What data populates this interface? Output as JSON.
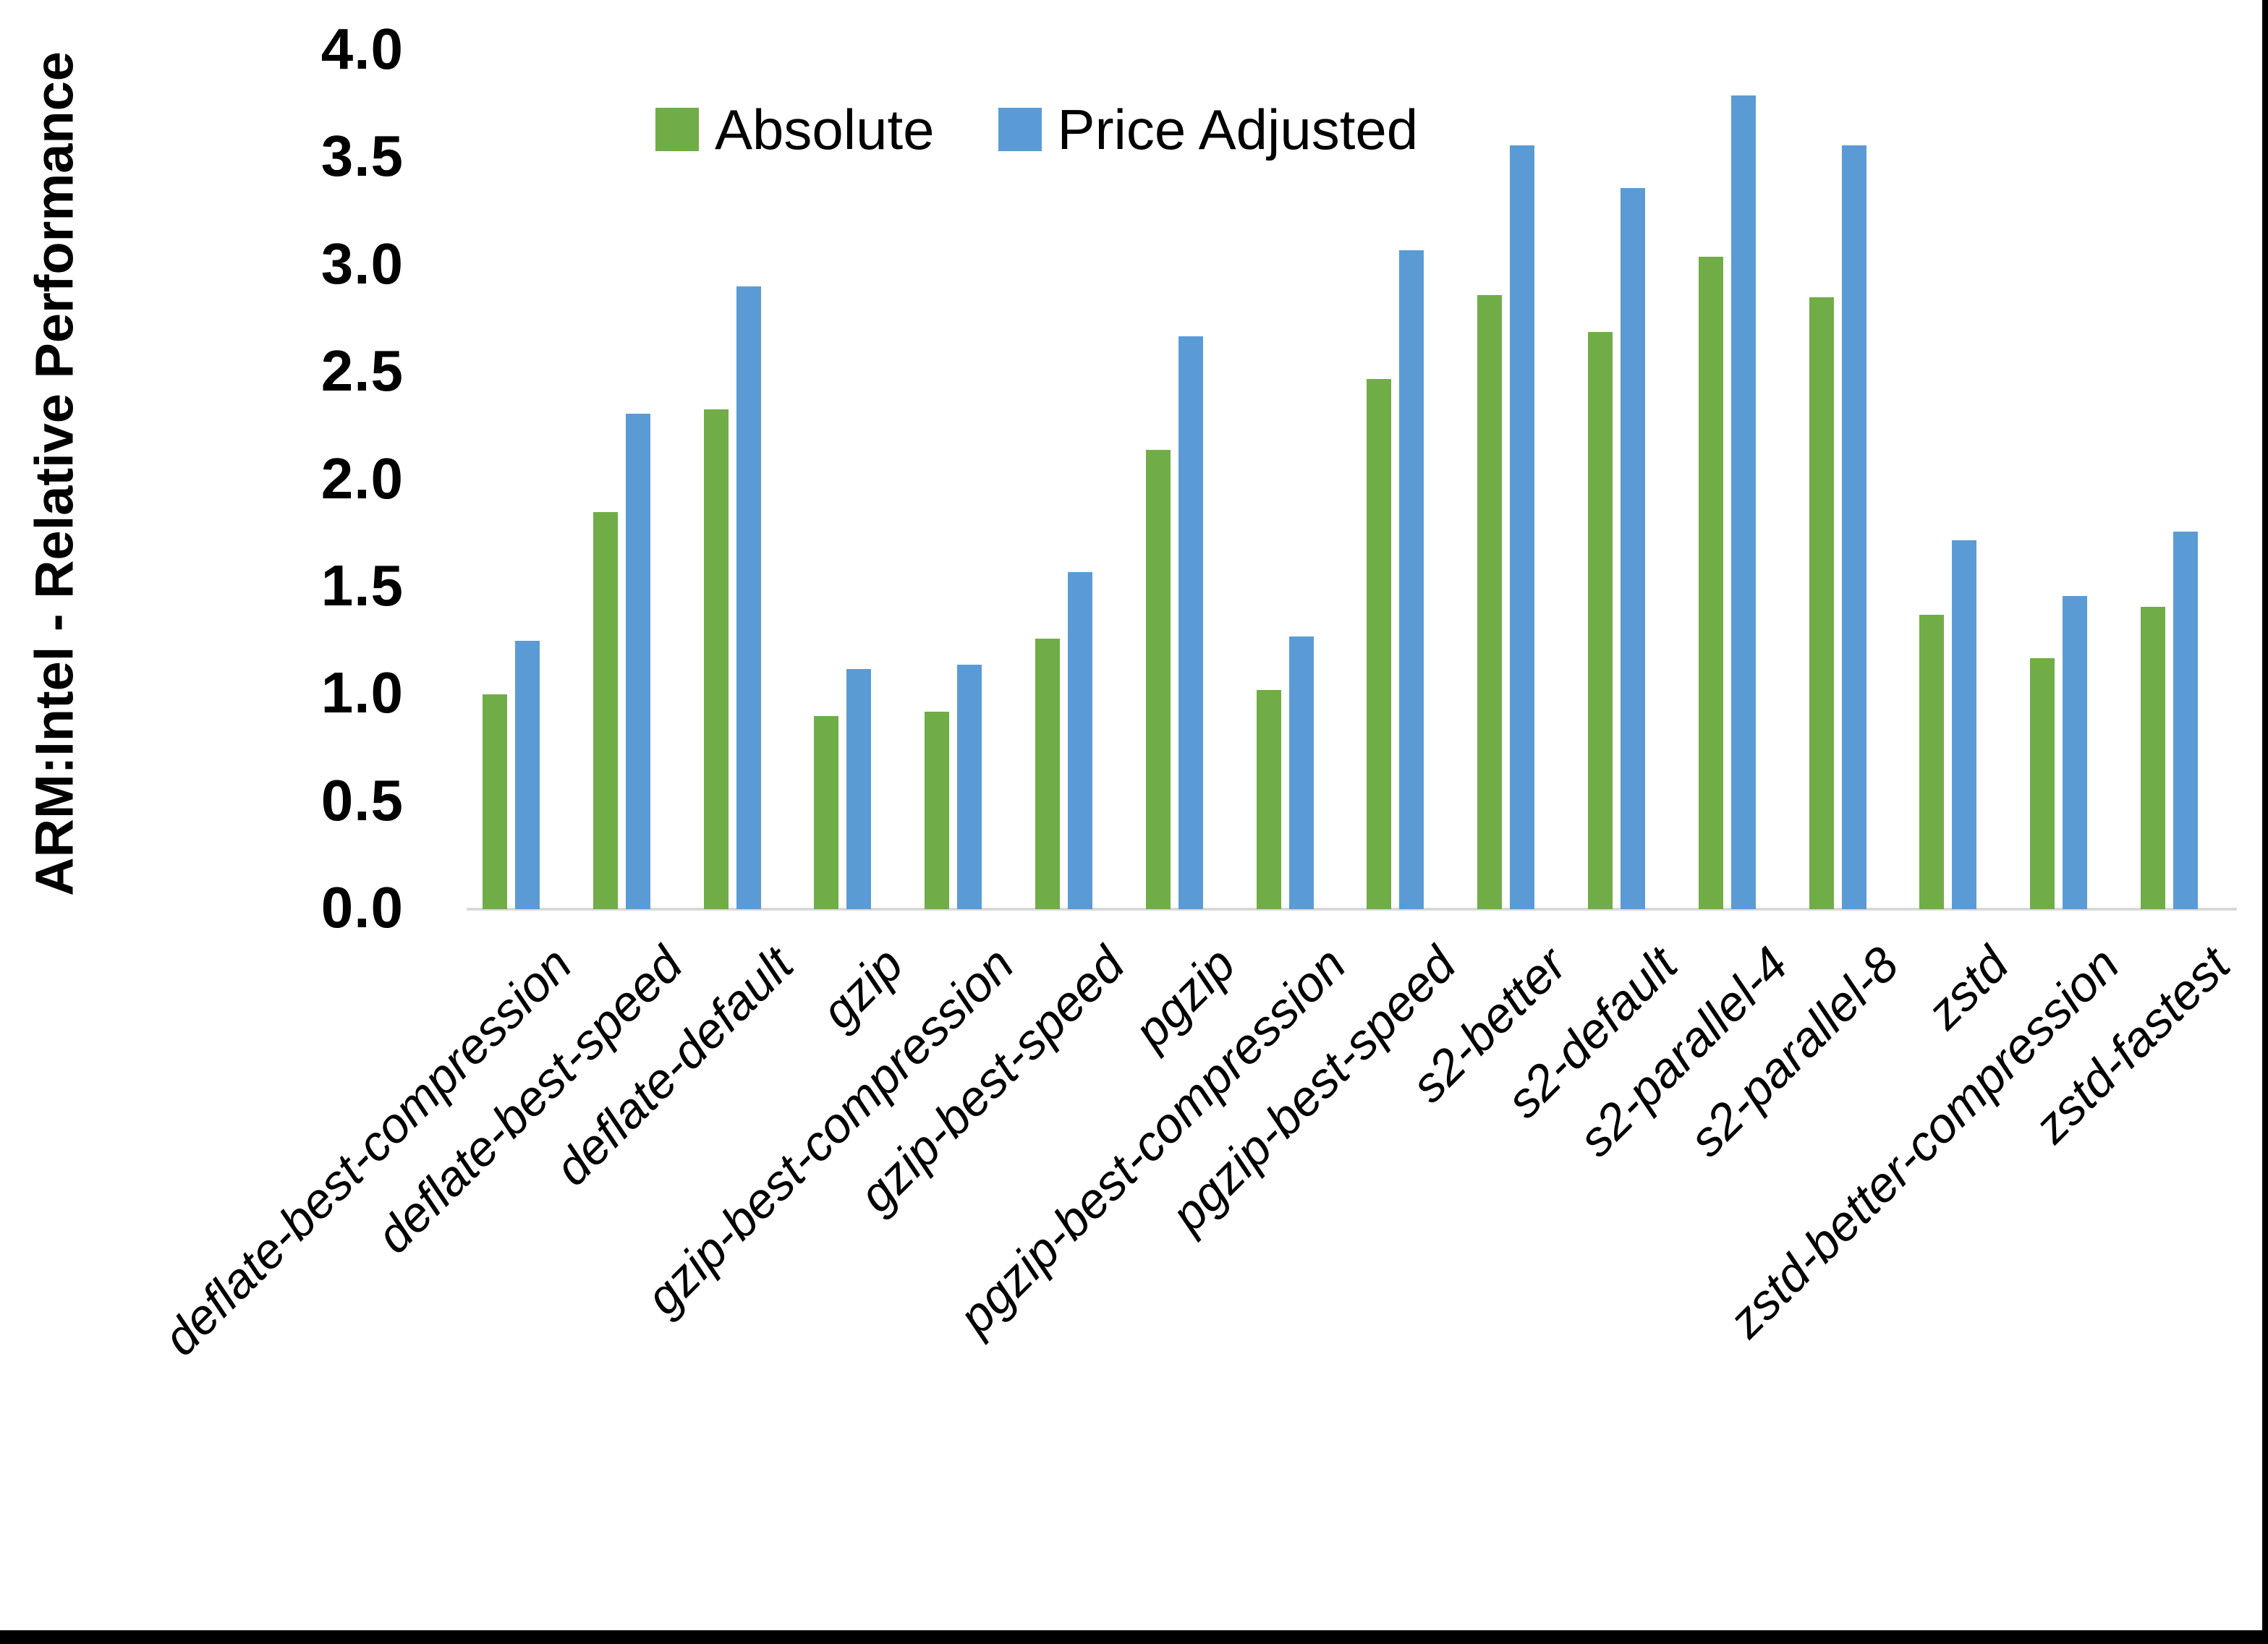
{
  "figure": {
    "background": "#FFFFFF",
    "border_right_color": "#000000",
    "border_bottom_color": "#000000",
    "axis_line_color": "#D9D9D9",
    "text_color": "#000000"
  },
  "y_axis": {
    "title": "ARM:Intel - Relative Performance",
    "tick_labels": [
      "0.0",
      "0.5",
      "1.0",
      "1.5",
      "2.0",
      "2.5",
      "3.0",
      "3.5",
      "4.0"
    ],
    "min": 0.0,
    "max": 4.0,
    "step": 0.5
  },
  "legend": {
    "items": [
      {
        "label": "Absolute",
        "color": "#70AD47"
      },
      {
        "label": "Price Adjusted",
        "color": "#5B9BD5"
      }
    ],
    "position": "top"
  },
  "chart_data": {
    "type": "bar",
    "title": "",
    "xlabel": "",
    "ylabel": "ARM:Intel - Relative Performance",
    "ylim": [
      0.0,
      4.0
    ],
    "ytick_step": 0.5,
    "grid": false,
    "legend_position": "top",
    "categories": [
      "deflate-best-compression",
      "deflate-best-speed",
      "deflate-default",
      "gzip",
      "gzip-best-compression",
      "gzip-best-speed",
      "pgzip",
      "pgzip-best-compression",
      "pgzip-best-speed",
      "s2-better",
      "s2-default",
      "s2-parallel-4",
      "s2-parallel-8",
      "zstd",
      "zstd-better-compression",
      "zstd-fastest"
    ],
    "series": [
      {
        "name": "Absolute",
        "color": "#70AD47",
        "values": [
          1.0,
          1.85,
          2.33,
          0.9,
          0.92,
          1.26,
          2.14,
          1.02,
          2.47,
          2.86,
          2.69,
          3.04,
          2.85,
          1.37,
          1.17,
          1.41
        ]
      },
      {
        "name": "Price Adjusted",
        "color": "#5B9BD5",
        "values": [
          1.25,
          2.31,
          2.9,
          1.12,
          1.14,
          1.57,
          2.67,
          1.27,
          3.07,
          3.56,
          3.36,
          3.79,
          3.56,
          1.72,
          1.46,
          1.76
        ]
      }
    ]
  }
}
